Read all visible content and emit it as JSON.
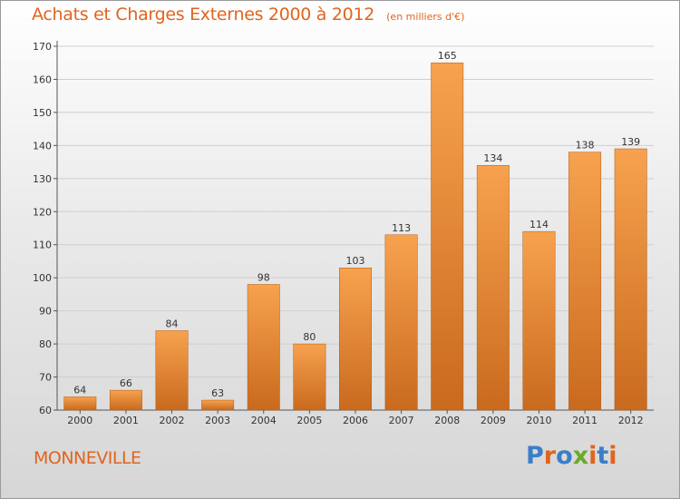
{
  "header": {
    "title": "Achats et Charges Externes 2000 à 2012",
    "subtitle": "(en milliers d'€)"
  },
  "footer": {
    "commune": "MONNEVILLE",
    "logo_text": "Proxiti",
    "logo_colors": [
      "#3a7ec9",
      "#e1641e",
      "#3a7ec9",
      "#6aaa2a",
      "#e1641e",
      "#3a7ec9",
      "#e1641e"
    ]
  },
  "colors": {
    "bar_top": "#f7a24e",
    "bar_bottom": "#c96a1e",
    "accent": "#e1641e",
    "grid": "#cfcfcf"
  },
  "chart_data": {
    "type": "bar",
    "title": "Achats et Charges Externes 2000 à 2012",
    "subtitle": "(en milliers d'€)",
    "categories": [
      "2000",
      "2001",
      "2002",
      "2003",
      "2004",
      "2005",
      "2006",
      "2007",
      "2008",
      "2009",
      "2010",
      "2011",
      "2012"
    ],
    "values": [
      64,
      66,
      84,
      63,
      98,
      80,
      103,
      113,
      165,
      134,
      114,
      138,
      139
    ],
    "ylim": [
      60,
      170
    ],
    "yticks": [
      60,
      70,
      80,
      90,
      100,
      110,
      120,
      130,
      140,
      150,
      160,
      170
    ],
    "xlabel": "",
    "ylabel": "",
    "grid": true,
    "legend": "none",
    "data_labels": true
  }
}
